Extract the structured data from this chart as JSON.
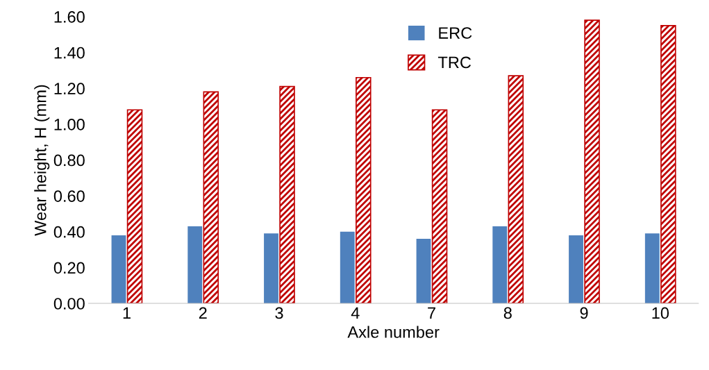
{
  "chart_data": {
    "type": "bar",
    "xlabel": "Axle number",
    "ylabel": "Wear height, H (mm)",
    "categories": [
      "1",
      "2",
      "3",
      "4",
      "7",
      "8",
      "9",
      "10"
    ],
    "series": [
      {
        "name": "ERC",
        "color": "#4f81bd",
        "values": [
          0.38,
          0.43,
          0.39,
          0.4,
          0.36,
          0.43,
          0.38,
          0.39
        ]
      },
      {
        "name": "TRC",
        "color": "#c00000",
        "values": [
          1.08,
          1.18,
          1.21,
          1.26,
          1.08,
          1.27,
          1.58,
          1.55
        ]
      }
    ],
    "ylim": [
      0,
      1.6
    ],
    "yticks": [
      {
        "value": 0,
        "label": "0.00"
      },
      {
        "value": 0.2,
        "label": "0.20"
      },
      {
        "value": 0.4,
        "label": "0.40"
      },
      {
        "value": 0.6,
        "label": "0.60"
      },
      {
        "value": 0.8,
        "label": "0.80"
      },
      {
        "value": 1.0,
        "label": "1.00"
      },
      {
        "value": 1.2,
        "label": "1.20"
      },
      {
        "value": 1.4,
        "label": "1.40"
      },
      {
        "value": 1.6,
        "label": "1.60"
      }
    ],
    "grid": false,
    "legend": "top"
  }
}
